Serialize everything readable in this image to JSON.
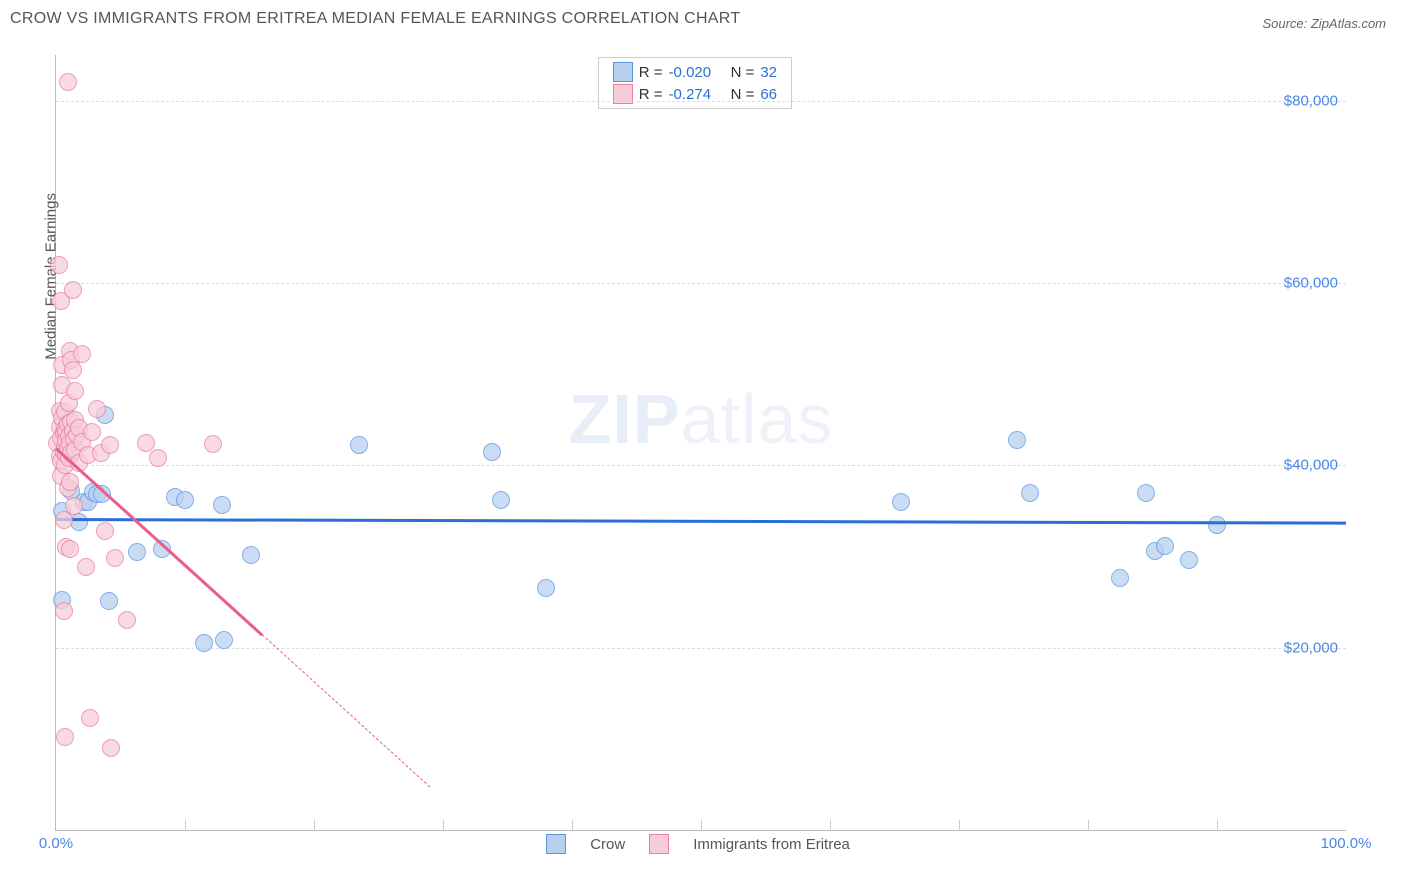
{
  "title": "CROW VS IMMIGRANTS FROM ERITREA MEDIAN FEMALE EARNINGS CORRELATION CHART",
  "source_label": "Source: ZipAtlas.com",
  "watermark": {
    "part1": "ZIP",
    "part2": "atlas"
  },
  "axes": {
    "y_label": "Median Female Earnings",
    "x_min": 0,
    "x_max": 100,
    "x_tick_label_min": "0.0%",
    "x_tick_label_max": "100.0%",
    "y_min": 0,
    "y_max": 85000,
    "y_gridlines": [
      20000,
      40000,
      60000,
      80000
    ],
    "y_tick_labels": [
      "$20,000",
      "$40,000",
      "$60,000",
      "$80,000"
    ],
    "x_minor_ticks": [
      10,
      20,
      30,
      40,
      50,
      60,
      70,
      80,
      90
    ],
    "grid_color": "#dddddd",
    "axis_color": "#bbbbbb"
  },
  "series": [
    {
      "name": "Crow",
      "legend_label": "Crow",
      "fill": "#b9d1f0",
      "stroke": "#5a96e0",
      "line_color": "#2a6fd6",
      "stats": {
        "R": "-0.020",
        "N": "32"
      },
      "trend": {
        "x1": 0,
        "y1": 34200,
        "x2": 100,
        "y2": 33800
      },
      "points": [
        {
          "x": 0.5,
          "y": 35000
        },
        {
          "x": 0.5,
          "y": 25200
        },
        {
          "x": 1.2,
          "y": 37200
        },
        {
          "x": 1.8,
          "y": 33800
        },
        {
          "x": 2.2,
          "y": 36000
        },
        {
          "x": 2.5,
          "y": 36000
        },
        {
          "x": 2.9,
          "y": 37100
        },
        {
          "x": 3.2,
          "y": 36900
        },
        {
          "x": 3.6,
          "y": 36800
        },
        {
          "x": 3.8,
          "y": 45500
        },
        {
          "x": 4.1,
          "y": 25100
        },
        {
          "x": 6.3,
          "y": 30500
        },
        {
          "x": 8.2,
          "y": 30800
        },
        {
          "x": 9.2,
          "y": 36500
        },
        {
          "x": 10.0,
          "y": 36200
        },
        {
          "x": 11.5,
          "y": 20500
        },
        {
          "x": 12.9,
          "y": 35700
        },
        {
          "x": 13.0,
          "y": 20800
        },
        {
          "x": 15.1,
          "y": 30200
        },
        {
          "x": 23.5,
          "y": 42200
        },
        {
          "x": 33.8,
          "y": 41500
        },
        {
          "x": 34.5,
          "y": 36200
        },
        {
          "x": 38.0,
          "y": 26500
        },
        {
          "x": 65.5,
          "y": 36000
        },
        {
          "x": 74.5,
          "y": 42800
        },
        {
          "x": 75.5,
          "y": 37000
        },
        {
          "x": 82.5,
          "y": 27600
        },
        {
          "x": 84.5,
          "y": 37000
        },
        {
          "x": 85.2,
          "y": 30600
        },
        {
          "x": 86.0,
          "y": 31200
        },
        {
          "x": 87.8,
          "y": 29600
        },
        {
          "x": 90.0,
          "y": 33500
        }
      ]
    },
    {
      "name": "Immigrants from Eritrea",
      "legend_label": "Immigrants from Eritrea",
      "fill": "#f7cdd9",
      "stroke": "#ea7fa0",
      "line_color": "#ea5f8a",
      "stats": {
        "R": "-0.274",
        "N": "66"
      },
      "trend": {
        "x1": 0,
        "y1": 42000,
        "x2": 16,
        "y2": 21500
      },
      "trend_ext": {
        "x1": 16,
        "y1": 21500,
        "x2": 29,
        "y2": 4800
      },
      "points": [
        {
          "x": 0.2,
          "y": 62000
        },
        {
          "x": 0.1,
          "y": 42500
        },
        {
          "x": 0.3,
          "y": 44200
        },
        {
          "x": 0.3,
          "y": 46000
        },
        {
          "x": 0.3,
          "y": 41000
        },
        {
          "x": 0.4,
          "y": 38800
        },
        {
          "x": 0.4,
          "y": 58000
        },
        {
          "x": 0.4,
          "y": 43000
        },
        {
          "x": 0.4,
          "y": 40500
        },
        {
          "x": 0.5,
          "y": 45200
        },
        {
          "x": 0.5,
          "y": 51000
        },
        {
          "x": 0.5,
          "y": 48800
        },
        {
          "x": 0.6,
          "y": 43500
        },
        {
          "x": 0.6,
          "y": 41500
        },
        {
          "x": 0.6,
          "y": 24000
        },
        {
          "x": 0.6,
          "y": 34000
        },
        {
          "x": 0.7,
          "y": 42000
        },
        {
          "x": 0.7,
          "y": 44000
        },
        {
          "x": 0.7,
          "y": 45900
        },
        {
          "x": 0.7,
          "y": 40000
        },
        {
          "x": 0.7,
          "y": 10200
        },
        {
          "x": 0.8,
          "y": 43600
        },
        {
          "x": 0.8,
          "y": 41200
        },
        {
          "x": 0.8,
          "y": 42700
        },
        {
          "x": 0.8,
          "y": 31000
        },
        {
          "x": 0.9,
          "y": 82000
        },
        {
          "x": 0.9,
          "y": 44500
        },
        {
          "x": 0.9,
          "y": 41900
        },
        {
          "x": 0.9,
          "y": 37500
        },
        {
          "x": 1.0,
          "y": 43200
        },
        {
          "x": 1.0,
          "y": 40800
        },
        {
          "x": 1.0,
          "y": 46800
        },
        {
          "x": 1.1,
          "y": 52500
        },
        {
          "x": 1.1,
          "y": 42400
        },
        {
          "x": 1.1,
          "y": 38200
        },
        {
          "x": 1.1,
          "y": 30800
        },
        {
          "x": 1.2,
          "y": 44800
        },
        {
          "x": 1.2,
          "y": 41300
        },
        {
          "x": 1.2,
          "y": 51500
        },
        {
          "x": 1.3,
          "y": 43800
        },
        {
          "x": 1.3,
          "y": 59200
        },
        {
          "x": 1.3,
          "y": 50500
        },
        {
          "x": 1.4,
          "y": 42900
        },
        {
          "x": 1.4,
          "y": 35500
        },
        {
          "x": 1.5,
          "y": 45000
        },
        {
          "x": 1.5,
          "y": 48200
        },
        {
          "x": 1.5,
          "y": 41700
        },
        {
          "x": 1.6,
          "y": 43300
        },
        {
          "x": 1.8,
          "y": 44100
        },
        {
          "x": 1.8,
          "y": 40300
        },
        {
          "x": 2.0,
          "y": 52200
        },
        {
          "x": 2.0,
          "y": 42600
        },
        {
          "x": 2.3,
          "y": 28800
        },
        {
          "x": 2.5,
          "y": 41100
        },
        {
          "x": 2.8,
          "y": 43700
        },
        {
          "x": 2.6,
          "y": 12300
        },
        {
          "x": 3.2,
          "y": 46200
        },
        {
          "x": 3.5,
          "y": 41400
        },
        {
          "x": 3.8,
          "y": 32800
        },
        {
          "x": 4.2,
          "y": 42200
        },
        {
          "x": 4.3,
          "y": 9000
        },
        {
          "x": 4.6,
          "y": 29800
        },
        {
          "x": 5.5,
          "y": 23000
        },
        {
          "x": 7.0,
          "y": 42400
        },
        {
          "x": 7.9,
          "y": 40800
        },
        {
          "x": 12.2,
          "y": 42300
        }
      ]
    }
  ],
  "legend": {
    "r_label": "R =",
    "n_label": "N =",
    "value_color": "#2a6fd6"
  },
  "styling": {
    "marker_size": 16,
    "marker_opacity": 0.75,
    "title_color": "#555555",
    "tick_label_color": "#4a86e8",
    "background": "#ffffff"
  }
}
